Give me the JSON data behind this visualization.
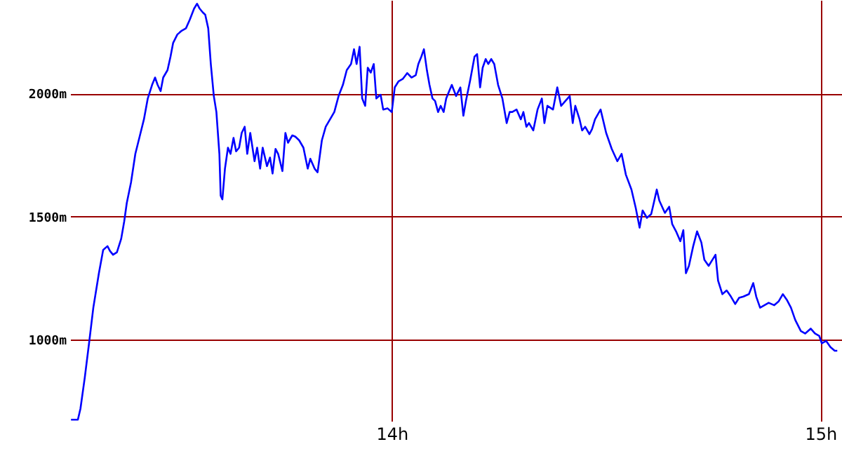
{
  "chart_data": {
    "type": "line",
    "x": [
      13.252,
      13.268,
      13.274,
      13.284,
      13.294,
      13.304,
      13.317,
      13.327,
      13.337,
      13.343,
      13.35,
      13.359,
      13.369,
      13.376,
      13.382,
      13.392,
      13.402,
      13.412,
      13.422,
      13.431,
      13.441,
      13.448,
      13.454,
      13.461,
      13.467,
      13.477,
      13.484,
      13.49,
      13.5,
      13.51,
      13.52,
      13.529,
      13.539,
      13.546,
      13.552,
      13.559,
      13.565,
      13.572,
      13.578,
      13.585,
      13.591,
      13.598,
      13.601,
      13.605,
      13.611,
      13.618,
      13.624,
      13.631,
      13.637,
      13.644,
      13.65,
      13.657,
      13.663,
      13.67,
      13.68,
      13.686,
      13.693,
      13.699,
      13.709,
      13.716,
      13.722,
      13.729,
      13.735,
      13.745,
      13.752,
      13.758,
      13.768,
      13.775,
      13.784,
      13.794,
      13.804,
      13.81,
      13.82,
      13.827,
      13.837,
      13.846,
      13.856,
      13.866,
      13.876,
      13.886,
      13.895,
      13.905,
      13.912,
      13.918,
      13.925,
      13.931,
      13.938,
      13.944,
      13.951,
      13.958,
      13.964,
      13.974,
      13.98,
      13.99,
      14.0,
      14.007,
      14.016,
      14.026,
      14.036,
      14.046,
      14.056,
      14.062,
      14.069,
      14.075,
      14.082,
      14.088,
      14.095,
      14.101,
      14.108,
      14.114,
      14.121,
      14.127,
      14.134,
      14.14,
      14.15,
      14.16,
      14.167,
      14.173,
      14.183,
      14.193,
      14.199,
      14.206,
      14.212,
      14.219,
      14.225,
      14.232,
      14.239,
      14.248,
      14.258,
      14.268,
      14.275,
      14.281,
      14.291,
      14.301,
      14.307,
      14.314,
      14.32,
      14.33,
      14.34,
      14.35,
      14.356,
      14.363,
      14.376,
      14.386,
      14.395,
      14.405,
      14.415,
      14.422,
      14.428,
      14.438,
      14.444,
      14.451,
      14.461,
      14.467,
      14.474,
      14.487,
      14.5,
      14.513,
      14.526,
      14.536,
      14.546,
      14.559,
      14.569,
      14.578,
      14.585,
      14.595,
      14.605,
      14.611,
      14.618,
      14.624,
      14.637,
      14.647,
      14.654,
      14.663,
      14.673,
      14.68,
      14.686,
      14.693,
      14.703,
      14.712,
      14.722,
      14.729,
      14.739,
      14.748,
      14.755,
      14.761,
      14.771,
      14.781,
      14.791,
      14.801,
      14.81,
      14.82,
      14.833,
      14.843,
      14.85,
      14.859,
      14.869,
      14.879,
      14.892,
      14.902,
      14.912,
      14.922,
      14.931,
      14.941,
      14.954,
      14.964,
      14.977,
      14.987,
      14.997,
      15.003,
      15.013,
      15.023,
      15.033,
      15.039
    ],
    "series": [
      {
        "color": "#0000ff",
        "values": [
          675,
          675,
          720,
          845,
          985,
          1130,
          1270,
          1365,
          1380,
          1360,
          1345,
          1355,
          1410,
          1480,
          1555,
          1640,
          1755,
          1825,
          1895,
          1980,
          2035,
          2065,
          2035,
          2010,
          2065,
          2095,
          2150,
          2205,
          2240,
          2255,
          2265,
          2300,
          2345,
          2365,
          2345,
          2330,
          2320,
          2265,
          2120,
          1990,
          1925,
          1755,
          1585,
          1570,
          1695,
          1780,
          1755,
          1820,
          1765,
          1780,
          1840,
          1865,
          1755,
          1840,
          1725,
          1780,
          1695,
          1780,
          1705,
          1740,
          1675,
          1775,
          1755,
          1685,
          1840,
          1800,
          1830,
          1825,
          1810,
          1780,
          1695,
          1735,
          1695,
          1680,
          1810,
          1865,
          1895,
          1925,
          1990,
          2035,
          2095,
          2120,
          2180,
          2120,
          2190,
          1980,
          1950,
          2105,
          2085,
          2120,
          1980,
          1995,
          1935,
          1940,
          1925,
          2025,
          2050,
          2060,
          2083,
          2065,
          2075,
          2120,
          2150,
          2180,
          2094,
          2035,
          1980,
          1970,
          1925,
          1950,
          1925,
          1980,
          2010,
          2035,
          1990,
          2025,
          1910,
          1970,
          2055,
          2150,
          2160,
          2025,
          2105,
          2140,
          2120,
          2140,
          2120,
          2035,
          1980,
          1880,
          1925,
          1925,
          1935,
          1895,
          1925,
          1865,
          1880,
          1850,
          1935,
          1980,
          1880,
          1950,
          1935,
          2025,
          1950,
          1970,
          1990,
          1880,
          1950,
          1895,
          1850,
          1865,
          1835,
          1855,
          1895,
          1935,
          1840,
          1775,
          1725,
          1755,
          1670,
          1610,
          1535,
          1455,
          1525,
          1495,
          1510,
          1555,
          1610,
          1565,
          1515,
          1540,
          1470,
          1440,
          1400,
          1445,
          1270,
          1300,
          1380,
          1440,
          1395,
          1325,
          1300,
          1325,
          1345,
          1240,
          1185,
          1200,
          1175,
          1145,
          1170,
          1175,
          1185,
          1230,
          1175,
          1130,
          1140,
          1150,
          1140,
          1155,
          1185,
          1160,
          1130,
          1080,
          1035,
          1025,
          1045,
          1025,
          1015,
          985,
          995,
          970,
          955,
          955
        ]
      }
    ],
    "xlim": [
      13.25,
      15.05
    ],
    "xticks": [
      {
        "value": 14,
        "label": "14h"
      },
      {
        "value": 15,
        "label": "15h"
      }
    ],
    "ylim": [
      670,
      2380
    ],
    "yticks": [
      {
        "value": 1000,
        "label": "1000m"
      },
      {
        "value": 1500,
        "label": "1500m"
      },
      {
        "value": 2000,
        "label": "2000m"
      }
    ],
    "grid": true
  }
}
